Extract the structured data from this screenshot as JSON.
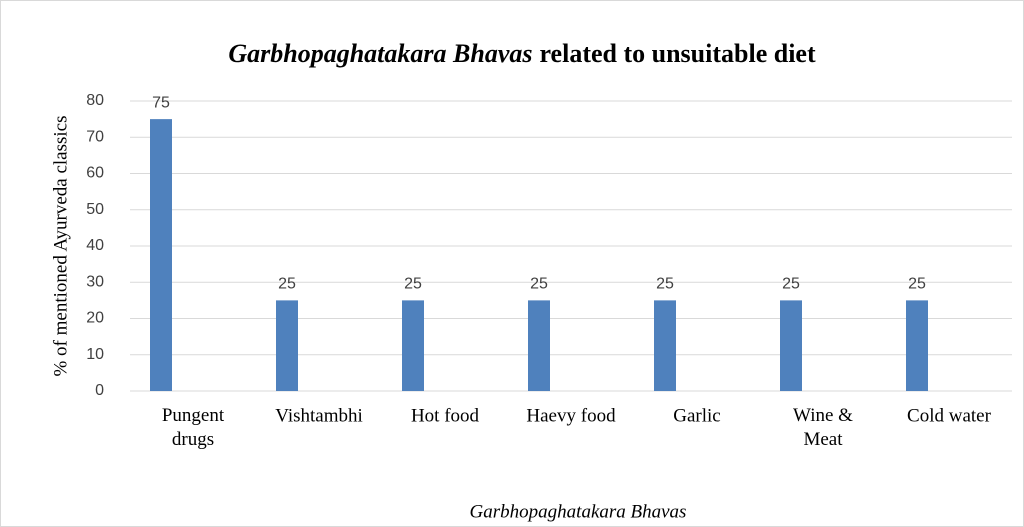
{
  "chart_data": {
    "type": "bar",
    "title": [
      "Garbhopaghatakara Bhavas",
      "related to unsuitable diet"
    ],
    "x_label": "Garbhopaghatakara Bhavas",
    "y_label": "% of mentioned Ayurveda classics",
    "categories": [
      "Pungent\ndrugs",
      "Vishtambhi",
      "Hot food",
      "Haevy food",
      "Garlic",
      "Wine &\nMeat",
      "Cold water"
    ],
    "values": [
      75,
      25,
      25,
      25,
      25,
      25,
      25
    ],
    "color": "#4f81bd",
    "ylim": [
      0,
      80
    ],
    "yticks": [
      0,
      10,
      20,
      30,
      40,
      50,
      60,
      70,
      80
    ],
    "grid": true
  }
}
